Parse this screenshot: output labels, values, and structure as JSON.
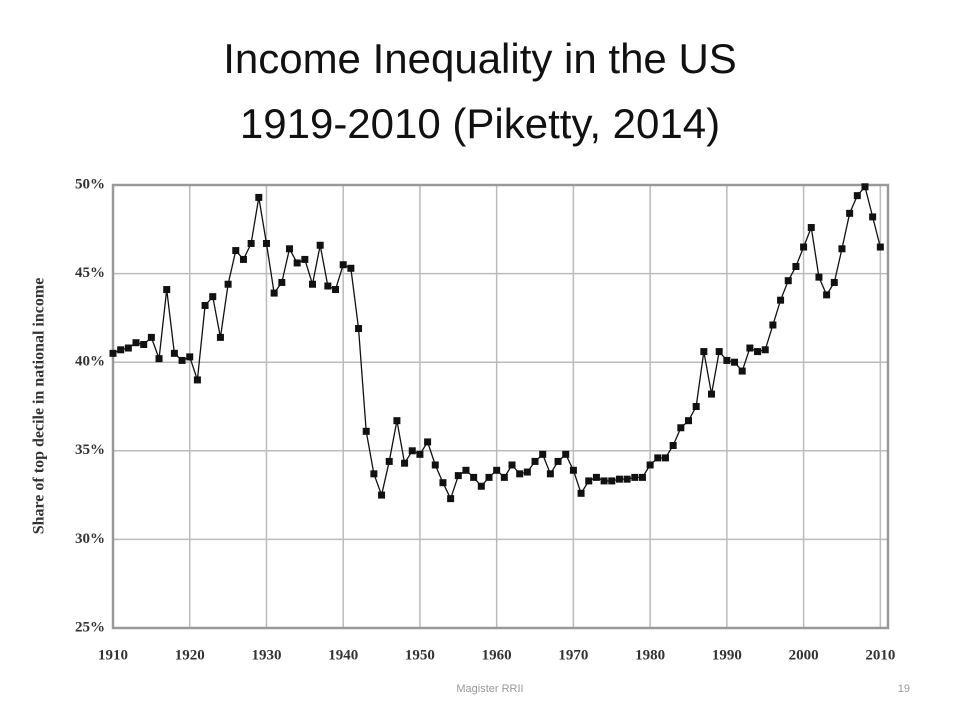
{
  "chart_data": {
    "type": "line",
    "title": "Income Inequality in the US",
    "subtitle": "1919-2010 (Piketty, 2014)",
    "y_label": "Share of top decile in national income",
    "x": [
      1910,
      1911,
      1912,
      1913,
      1914,
      1915,
      1916,
      1917,
      1918,
      1919,
      1920,
      1921,
      1922,
      1923,
      1924,
      1925,
      1926,
      1927,
      1928,
      1929,
      1930,
      1931,
      1932,
      1933,
      1934,
      1935,
      1936,
      1937,
      1938,
      1939,
      1940,
      1941,
      1942,
      1943,
      1944,
      1945,
      1946,
      1947,
      1948,
      1949,
      1950,
      1951,
      1952,
      1953,
      1954,
      1955,
      1956,
      1957,
      1958,
      1959,
      1960,
      1961,
      1962,
      1963,
      1964,
      1965,
      1966,
      1967,
      1968,
      1969,
      1970,
      1971,
      1972,
      1973,
      1974,
      1975,
      1976,
      1977,
      1978,
      1979,
      1980,
      1981,
      1982,
      1983,
      1984,
      1985,
      1986,
      1987,
      1988,
      1989,
      1990,
      1991,
      1992,
      1993,
      1994,
      1995,
      1996,
      1997,
      1998,
      1999,
      2000,
      2001,
      2002,
      2003,
      2004,
      2005,
      2006,
      2007,
      2008,
      2009,
      2010
    ],
    "series": [
      {
        "name": "Top decile share",
        "color": "#111111",
        "values": [
          40.5,
          40.7,
          40.8,
          41.1,
          41.0,
          41.4,
          40.2,
          44.1,
          40.5,
          40.1,
          40.3,
          39.0,
          43.2,
          43.7,
          41.4,
          44.4,
          46.3,
          45.8,
          46.7,
          49.3,
          46.7,
          43.9,
          44.5,
          46.4,
          45.6,
          45.8,
          44.4,
          46.6,
          44.3,
          44.1,
          45.5,
          45.3,
          41.9,
          36.1,
          33.7,
          32.5,
          34.4,
          36.7,
          34.3,
          35.0,
          34.8,
          35.5,
          34.2,
          33.2,
          32.3,
          33.6,
          33.9,
          33.5,
          33.0,
          33.5,
          33.9,
          33.5,
          34.2,
          33.7,
          33.8,
          34.4,
          34.8,
          33.7,
          34.4,
          34.8,
          33.9,
          32.6,
          33.3,
          33.5,
          33.3,
          33.3,
          33.4,
          33.4,
          33.5,
          33.5,
          34.2,
          34.6,
          34.6,
          35.3,
          36.3,
          36.7,
          37.5,
          40.6,
          38.2,
          40.6,
          40.1,
          40.0,
          39.5,
          40.8,
          40.6,
          40.7,
          42.1,
          43.5,
          44.6,
          45.4,
          46.5,
          47.6,
          44.8,
          43.8,
          44.5,
          46.4,
          48.4,
          49.4,
          49.9,
          48.2,
          46.5
        ]
      }
    ],
    "xlim": [
      1910,
      2011
    ],
    "ylim": [
      25,
      50
    ],
    "xticks": [
      1910,
      1920,
      1930,
      1940,
      1950,
      1960,
      1970,
      1980,
      1990,
      2000,
      2010
    ],
    "yticks": [
      {
        "value": 25,
        "label": "25%"
      },
      {
        "value": 30,
        "label": "30%"
      },
      {
        "value": 35,
        "label": "35%"
      },
      {
        "value": 40,
        "label": "40%"
      },
      {
        "value": 45,
        "label": "45%"
      },
      {
        "value": 50,
        "label": "50%"
      }
    ],
    "grid": true
  },
  "footer": {
    "text": "Magister RRII",
    "page": "19"
  }
}
